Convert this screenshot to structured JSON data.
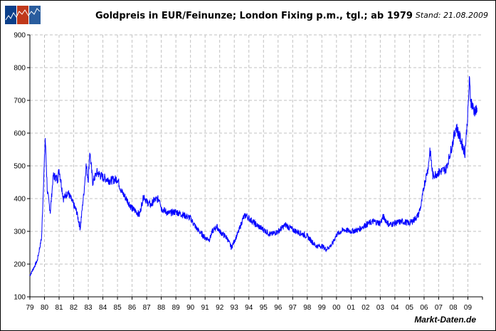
{
  "header": {
    "title": "Goldpreis in EUR/Feinunze; London Fixing p.m., tgl.; ab 1979",
    "stand": "Stand: 21.08.2009"
  },
  "source": "Markt-Daten.de",
  "logo": {
    "colors": [
      "#0b3f8a",
      "#c0391b",
      "#2a5d9e"
    ]
  },
  "chart_data": {
    "type": "line",
    "title": "Goldpreis in EUR/Feinunze; London Fixing p.m., tgl.; ab 1979",
    "xlabel": "",
    "ylabel": "",
    "ylim": [
      100,
      900
    ],
    "xlim": [
      1979,
      2010
    ],
    "yticks": [
      100,
      200,
      300,
      400,
      500,
      600,
      700,
      800,
      900
    ],
    "xtick_labels": [
      "79",
      "80",
      "81",
      "82",
      "83",
      "84",
      "85",
      "86",
      "87",
      "88",
      "89",
      "90",
      "91",
      "92",
      "93",
      "94",
      "95",
      "96",
      "97",
      "98",
      "99",
      "00",
      "01",
      "02",
      "03",
      "04",
      "05",
      "06",
      "07",
      "08",
      "09"
    ],
    "grid": true,
    "line_color": "#0000ff",
    "x": [
      1979.0,
      1979.5,
      1979.8,
      1980.05,
      1980.2,
      1980.4,
      1980.6,
      1980.9,
      1981.0,
      1981.3,
      1981.6,
      1981.9,
      1982.2,
      1982.45,
      1982.7,
      1982.85,
      1983.0,
      1983.1,
      1983.3,
      1983.6,
      1984.0,
      1984.5,
      1985.0,
      1985.3,
      1985.6,
      1986.0,
      1986.3,
      1986.5,
      1986.8,
      1987.0,
      1987.3,
      1987.5,
      1987.9,
      1988.0,
      1988.5,
      1989.0,
      1989.5,
      1990.0,
      1990.4,
      1990.6,
      1991.0,
      1991.3,
      1991.5,
      1991.8,
      1992.0,
      1992.5,
      1992.8,
      1993.0,
      1993.3,
      1993.6,
      1993.8,
      1994.0,
      1994.5,
      1995.0,
      1995.5,
      1996.0,
      1996.5,
      1997.0,
      1997.5,
      1998.0,
      1998.3,
      1998.6,
      1999.0,
      1999.3,
      1999.7,
      2000.0,
      2000.5,
      2001.0,
      2001.5,
      2002.0,
      2002.5,
      2003.0,
      2003.2,
      2003.6,
      2004.0,
      2004.5,
      2005.0,
      2005.3,
      2005.6,
      2005.8,
      2006.0,
      2006.3,
      2006.4,
      2006.6,
      2007.0,
      2007.5,
      2007.8,
      2008.0,
      2008.2,
      2008.5,
      2008.8,
      2009.0,
      2009.1,
      2009.2,
      2009.4,
      2009.63
    ],
    "y": [
      165,
      210,
      280,
      585,
      420,
      360,
      470,
      460,
      490,
      400,
      420,
      390,
      360,
      310,
      420,
      500,
      460,
      545,
      450,
      480,
      465,
      455,
      460,
      420,
      400,
      370,
      360,
      350,
      410,
      390,
      380,
      395,
      400,
      370,
      355,
      360,
      350,
      340,
      310,
      300,
      280,
      275,
      300,
      315,
      300,
      280,
      250,
      270,
      300,
      340,
      350,
      340,
      320,
      305,
      290,
      300,
      320,
      305,
      295,
      285,
      270,
      255,
      255,
      245,
      260,
      290,
      305,
      300,
      305,
      320,
      330,
      325,
      345,
      320,
      325,
      330,
      325,
      335,
      350,
      380,
      440,
      500,
      550,
      470,
      480,
      490,
      540,
      580,
      620,
      580,
      540,
      660,
      760,
      700,
      670,
      665
    ]
  }
}
